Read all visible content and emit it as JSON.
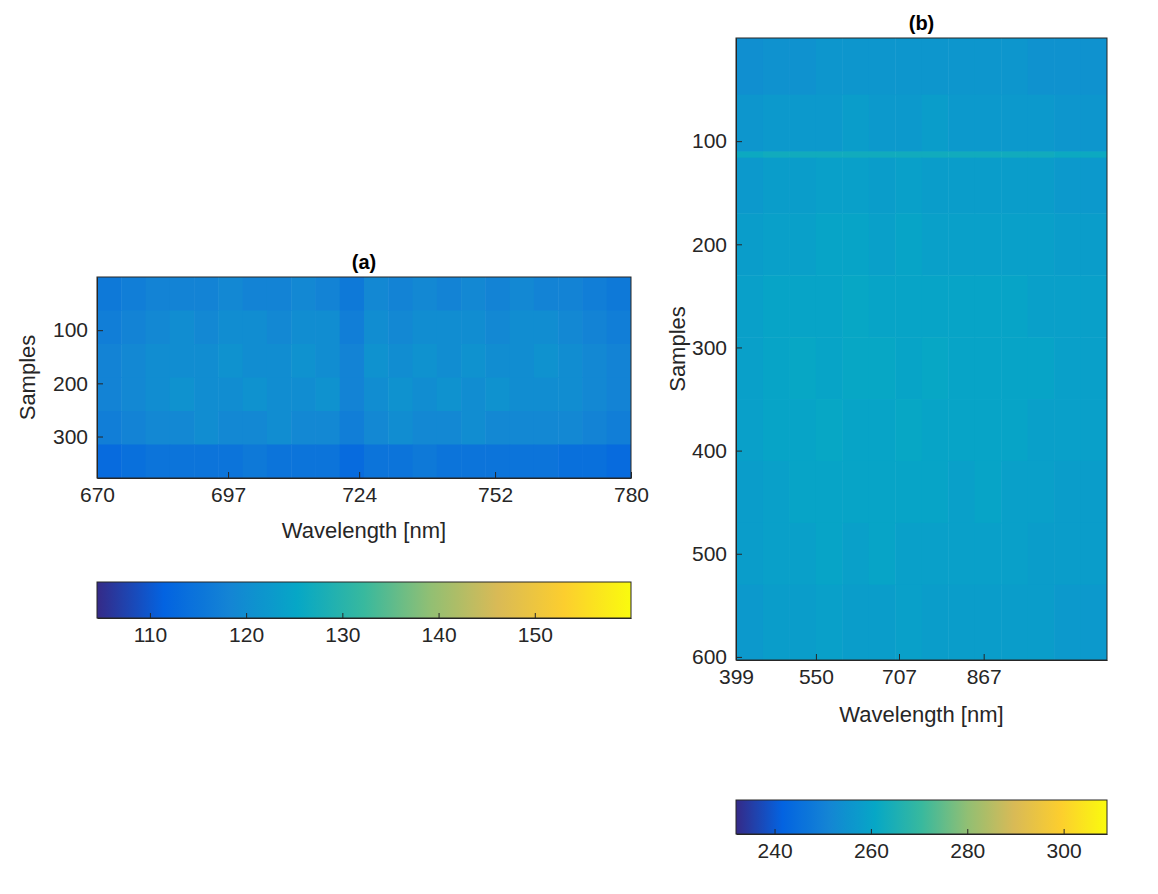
{
  "chart_data": [
    {
      "type": "heatmap",
      "title": "(a)",
      "xlabel": "Wavelength [nm]",
      "ylabel": "Samples",
      "xlim": [
        670,
        780
      ],
      "xticks": [
        670,
        697,
        724,
        752,
        780
      ],
      "ylim": [
        0,
        378
      ],
      "yticks": [
        100,
        200,
        300
      ],
      "x_edges": [
        670,
        675,
        680,
        685,
        690,
        695,
        700,
        705,
        710,
        715,
        720,
        725,
        730,
        735,
        740,
        745,
        750,
        755,
        760,
        765,
        770,
        775,
        780
      ],
      "y_edges": [
        0,
        63,
        126,
        189,
        252,
        315,
        378
      ],
      "z": [
        [
          116,
          117,
          118,
          118,
          118,
          119,
          118,
          118,
          119,
          118,
          116,
          119,
          118,
          119,
          118,
          119,
          118,
          119,
          118,
          118,
          117,
          116
        ],
        [
          117,
          118,
          119,
          120,
          119,
          120,
          120,
          119,
          120,
          120,
          117,
          120,
          119,
          120,
          120,
          120,
          119,
          120,
          120,
          119,
          118,
          117
        ],
        [
          118,
          119,
          120,
          120,
          120,
          121,
          120,
          120,
          121,
          120,
          118,
          121,
          120,
          121,
          120,
          121,
          120,
          120,
          121,
          120,
          119,
          118
        ],
        [
          118,
          119,
          120,
          121,
          120,
          120,
          121,
          120,
          120,
          121,
          118,
          120,
          121,
          120,
          121,
          120,
          121,
          120,
          120,
          120,
          119,
          118
        ],
        [
          117,
          118,
          119,
          119,
          120,
          119,
          119,
          120,
          119,
          119,
          117,
          119,
          120,
          119,
          119,
          120,
          119,
          119,
          119,
          119,
          118,
          117
        ],
        [
          113,
          114,
          115,
          115,
          115,
          115,
          116,
          115,
          115,
          115,
          113,
          115,
          115,
          116,
          115,
          115,
          115,
          115,
          115,
          114,
          114,
          113
        ]
      ],
      "clim": [
        104.5,
        160
      ],
      "cticks": [
        110,
        120,
        130,
        140,
        150
      ]
    },
    {
      "type": "heatmap",
      "title": "(b)",
      "xlabel": "Wavelength [nm]",
      "ylabel": "Samples",
      "xlim": [
        399,
        1100
      ],
      "xticks": [
        399,
        550,
        707,
        867
      ],
      "ylim": [
        0,
        603
      ],
      "yticks": [
        100,
        200,
        300,
        400,
        500,
        600
      ],
      "x_edges": [
        399,
        450,
        500,
        550,
        600,
        650,
        700,
        750,
        800,
        850,
        900,
        950,
        1000,
        1050,
        1100
      ],
      "y_edges": [
        0,
        55,
        110,
        116,
        170,
        230,
        290,
        350,
        410,
        470,
        530,
        603
      ],
      "z": [
        [
          254,
          255,
          255,
          256,
          256,
          256,
          256,
          256,
          256,
          256,
          256,
          255,
          255,
          255
        ],
        [
          256,
          257,
          257,
          257,
          258,
          257,
          257,
          258,
          257,
          257,
          257,
          257,
          256,
          256
        ],
        [
          262,
          263,
          263,
          263,
          263,
          263,
          263,
          263,
          263,
          263,
          263,
          263,
          262,
          262
        ],
        [
          257,
          258,
          258,
          259,
          259,
          258,
          259,
          258,
          258,
          258,
          258,
          258,
          257,
          257
        ],
        [
          258,
          259,
          259,
          260,
          260,
          259,
          260,
          259,
          259,
          259,
          259,
          259,
          258,
          258
        ],
        [
          259,
          260,
          260,
          260,
          261,
          260,
          260,
          260,
          260,
          260,
          260,
          259,
          259,
          259
        ],
        [
          259,
          260,
          261,
          260,
          261,
          261,
          260,
          261,
          260,
          260,
          260,
          260,
          259,
          259
        ],
        [
          259,
          260,
          260,
          261,
          260,
          260,
          261,
          260,
          260,
          260,
          260,
          259,
          259,
          259
        ],
        [
          258,
          259,
          260,
          260,
          260,
          260,
          260,
          260,
          259,
          260,
          259,
          259,
          258,
          258
        ],
        [
          258,
          259,
          259,
          260,
          259,
          260,
          259,
          259,
          259,
          259,
          259,
          258,
          258,
          258
        ],
        [
          257,
          258,
          258,
          259,
          258,
          258,
          259,
          258,
          258,
          258,
          258,
          258,
          257,
          257
        ]
      ],
      "clim": [
        232,
        309
      ],
      "cticks": [
        240,
        260,
        280,
        300
      ]
    }
  ]
}
